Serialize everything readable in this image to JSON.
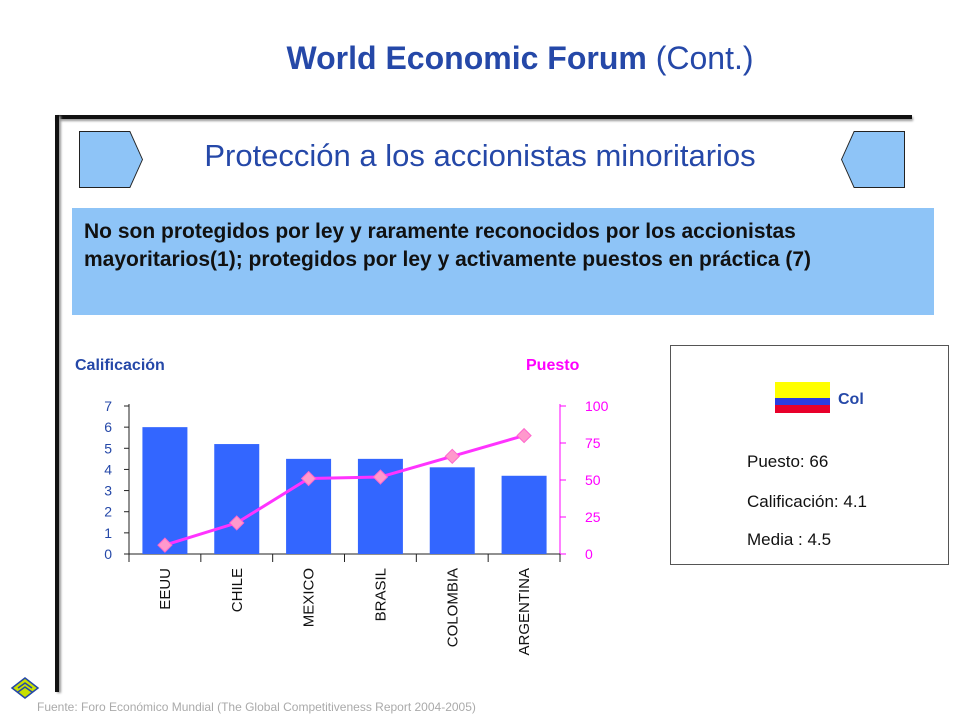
{
  "header": {
    "title_bold": "World Economic Forum",
    "title_thin": "(Cont.)"
  },
  "subtitle": "Protección a los accionistas minoritarios",
  "info_text": "No son protegidos por ley y raramente reconocidos por los accionistas mayoritarios(1); protegidos por ley y activamente puestos en práctica (7)",
  "context": {
    "country": "Col",
    "flag_colors": [
      "#ffff00",
      "#2b3de0",
      "#e8002a"
    ],
    "rank": "Puesto: 66",
    "score": "Calificación: 4.1",
    "mean": "Media : 4.5"
  },
  "source": "Fuente: Foro Económico Mundial (The Global Competitiveness Report 2004-2005)",
  "chart_data": {
    "type": "bar",
    "categories": [
      "EEUU",
      "CHILE",
      "MEXICO",
      "BRASIL",
      "COLOMBIA",
      "ARGENTINA"
    ],
    "ylabel": "Calificación",
    "y2label": "Puesto",
    "ylim": [
      0,
      7
    ],
    "y2lim": [
      0,
      100
    ],
    "yticks": [
      "0",
      "1",
      "2",
      "3",
      "4",
      "5",
      "6",
      "7"
    ],
    "y2ticks": [
      "0",
      "25",
      "50",
      "75",
      "100"
    ],
    "series": [
      {
        "name": "Calificación",
        "kind": "bar",
        "axis": "left",
        "color": "#3366ff",
        "values": [
          6.0,
          5.2,
          4.5,
          4.5,
          4.1,
          3.7
        ]
      },
      {
        "name": "Puesto",
        "kind": "line",
        "axis": "right",
        "color": "#ff33ff",
        "marker_color": "#ff99cc",
        "values": [
          6,
          21,
          51,
          52,
          66,
          80
        ]
      }
    ]
  }
}
